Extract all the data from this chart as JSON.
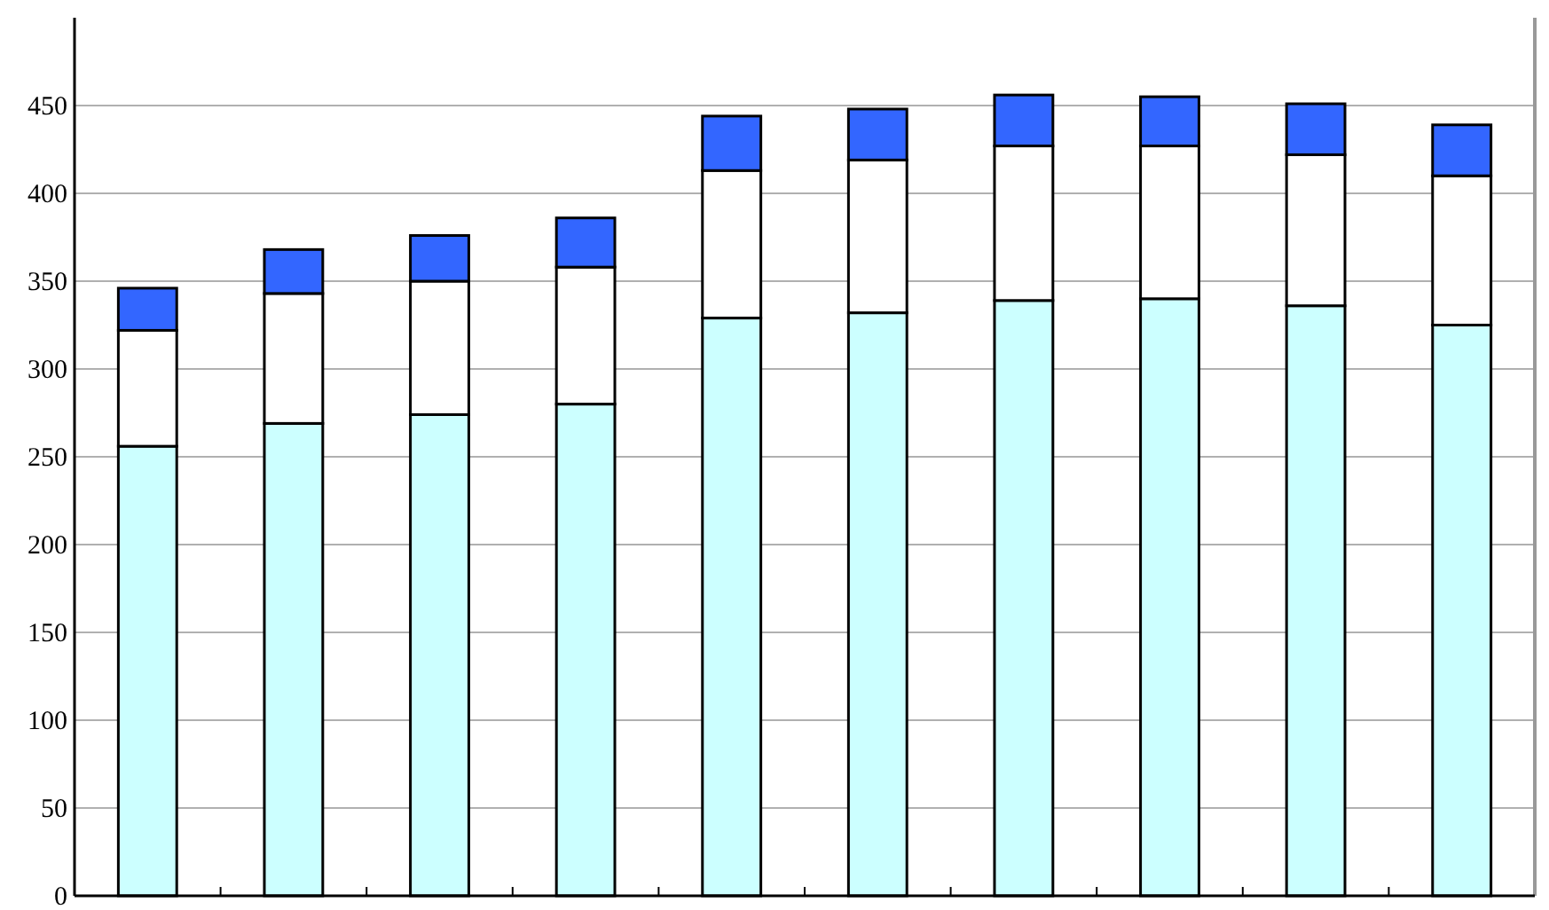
{
  "chart_data": {
    "type": "bar",
    "stacked": true,
    "categories": [
      null,
      null,
      null,
      null,
      null,
      null,
      null,
      null,
      null,
      null
    ],
    "series": [
      {
        "color": "#ccffff",
        "values": [
          256,
          269,
          274,
          280,
          329,
          332,
          339,
          340,
          336,
          325
        ]
      },
      {
        "color": "#ffffff",
        "values": [
          66,
          74,
          76,
          78,
          84,
          87,
          88,
          87,
          86,
          85
        ]
      },
      {
        "color": "#3366ff",
        "values": [
          24,
          25,
          26,
          28,
          31,
          29,
          29,
          28,
          29,
          29
        ]
      }
    ],
    "ylim": [
      0,
      500
    ],
    "yticks": [
      0,
      50,
      100,
      150,
      200,
      250,
      300,
      350,
      400,
      450
    ],
    "grid": "y",
    "tick_labels": "y"
  }
}
